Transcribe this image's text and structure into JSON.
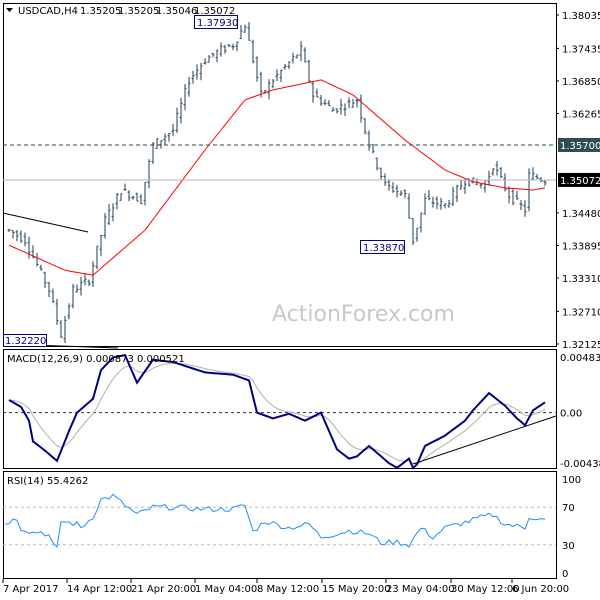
{
  "header": {
    "symbol": "USDCAD,H4",
    "open": "1.35205",
    "high": "1.35205",
    "low": "1.35046",
    "close": "1.35072"
  },
  "watermark": "ActionForex.com",
  "colors": {
    "bars": "#1e3f5a",
    "ma": "#ff0000",
    "macd": "#000080",
    "signal": "#b0b0b0",
    "rsi": "#1e90ff",
    "current_price_bg": "#000000",
    "level_bg": "#2f4f4f"
  },
  "chart_data": [
    {
      "type": "ohlc",
      "title": "USDCAD,H4",
      "x_unit": "bar",
      "ylim": [
        1.32125,
        1.38035
      ],
      "y_ticks": [
        "1.38035",
        "1.37435",
        "1.36850",
        "1.36265",
        "1.35700",
        "1.35072",
        "1.34480",
        "1.33895",
        "1.33310",
        "1.32710",
        "1.32125"
      ],
      "x_ticks": [
        "7 Apr 2017",
        "14 Apr 12:00",
        "21 Apr 20:00",
        "1 May 04:00",
        "8 May 12:00",
        "15 May 20:00",
        "23 May 04:00",
        "30 May 12:00",
        "6 Jun 20:00"
      ],
      "price_path": [
        [
          1,
          1.3417
        ],
        [
          5,
          1.3399
        ],
        [
          11,
          1.331
        ],
        [
          14,
          1.3229
        ],
        [
          17,
          1.331
        ],
        [
          21,
          1.3328
        ],
        [
          25,
          1.3435
        ],
        [
          29,
          1.3489
        ],
        [
          34,
          1.3471
        ],
        [
          37,
          1.357
        ],
        [
          42,
          1.3597
        ],
        [
          46,
          1.3687
        ],
        [
          50,
          1.3723
        ],
        [
          54,
          1.3741
        ],
        [
          57,
          1.375
        ],
        [
          60,
          1.3786
        ],
        [
          64,
          1.366
        ],
        [
          67,
          1.3687
        ],
        [
          74,
          1.3741
        ],
        [
          77,
          1.366
        ],
        [
          82,
          1.3633
        ],
        [
          88,
          1.3651
        ],
        [
          91,
          1.357
        ],
        [
          95,
          1.3498
        ],
        [
          100,
          1.348
        ],
        [
          102,
          1.3399
        ],
        [
          105,
          1.3471
        ],
        [
          110,
          1.3462
        ],
        [
          115,
          1.3507
        ],
        [
          120,
          1.3498
        ],
        [
          122,
          1.3534
        ],
        [
          126,
          1.348
        ],
        [
          130,
          1.3453
        ],
        [
          131,
          1.3516
        ],
        [
          135,
          1.3507
        ]
      ],
      "moving_average": [
        [
          1,
          1.339
        ],
        [
          15,
          1.3345
        ],
        [
          22,
          1.3336
        ],
        [
          35,
          1.3417
        ],
        [
          50,
          1.3561
        ],
        [
          60,
          1.3651
        ],
        [
          67,
          1.3669
        ],
        [
          79,
          1.3687
        ],
        [
          87,
          1.366
        ],
        [
          100,
          1.3579
        ],
        [
          110,
          1.3525
        ],
        [
          117,
          1.3504
        ],
        [
          125,
          1.3493
        ],
        [
          132,
          1.3489
        ],
        [
          135,
          1.3493
        ]
      ],
      "labels": [
        {
          "text": "1.37930"
        },
        {
          "text": "1.33870"
        },
        {
          "text": "1.32220"
        }
      ],
      "levels": [
        {
          "value": "1.35700",
          "style": "dashed"
        },
        {
          "value": "1.35072",
          "style": "current"
        }
      ]
    },
    {
      "type": "line",
      "title": "MACD(12,26,9) 0.000873 0.000521",
      "ylim": [
        -0.004381,
        0.004839
      ],
      "y_ticks": [
        "0.004839",
        "0.00",
        "-0.004381"
      ],
      "macd": [
        [
          1,
          0.0011
        ],
        [
          4,
          0.0005
        ],
        [
          6,
          -0.0007
        ],
        [
          7,
          -0.0025
        ],
        [
          10,
          -0.0033
        ],
        [
          13,
          -0.0042
        ],
        [
          16,
          -0.0016
        ],
        [
          18,
          0.0
        ],
        [
          22,
          0.0012
        ],
        [
          24,
          0.0037
        ],
        [
          27,
          0.0048
        ],
        [
          30,
          0.005
        ],
        [
          33,
          0.0026
        ],
        [
          37,
          0.0046
        ],
        [
          42,
          0.0044
        ],
        [
          50,
          0.0035
        ],
        [
          57,
          0.0033
        ],
        [
          61,
          0.0028
        ],
        [
          63,
          0.0
        ],
        [
          67,
          -0.0005
        ],
        [
          71,
          -0.0001
        ],
        [
          75,
          -0.0007
        ],
        [
          79,
          0.0
        ],
        [
          83,
          -0.0032
        ],
        [
          86,
          -0.004
        ],
        [
          88,
          -0.0038
        ],
        [
          91,
          -0.0029
        ],
        [
          93,
          -0.0035
        ],
        [
          96,
          -0.0044
        ],
        [
          98,
          -0.0048
        ],
        [
          101,
          -0.004
        ],
        [
          102,
          -0.0053
        ],
        [
          105,
          -0.0029
        ],
        [
          110,
          -0.002
        ],
        [
          115,
          -0.0007
        ],
        [
          117,
          0.0002
        ],
        [
          121,
          0.0017
        ],
        [
          125,
          0.0006
        ],
        [
          128,
          -0.0005
        ],
        [
          130,
          -0.0011
        ],
        [
          132,
          0.0002
        ],
        [
          135,
          0.0009
        ]
      ]
    },
    {
      "type": "line",
      "title": "RSI(14) 55.4262",
      "ylim": [
        0,
        100
      ],
      "y_ticks": [
        "100",
        "70",
        "30",
        "0"
      ],
      "levels": [
        70,
        30
      ],
      "rsi": [
        [
          0,
          53
        ],
        [
          3,
          58
        ],
        [
          4,
          48
        ],
        [
          7,
          43
        ],
        [
          9,
          44
        ],
        [
          11,
          40
        ],
        [
          12,
          30
        ],
        [
          13,
          25
        ],
        [
          14,
          55
        ],
        [
          18,
          52
        ],
        [
          19,
          48
        ],
        [
          22,
          60
        ],
        [
          24,
          78
        ],
        [
          27,
          82
        ],
        [
          30,
          72
        ],
        [
          33,
          62
        ],
        [
          37,
          70
        ],
        [
          42,
          70
        ],
        [
          49,
          68
        ],
        [
          57,
          68
        ],
        [
          60,
          72
        ],
        [
          62,
          44
        ],
        [
          65,
          55
        ],
        [
          71,
          48
        ],
        [
          76,
          52
        ],
        [
          79,
          38
        ],
        [
          86,
          45
        ],
        [
          91,
          42
        ],
        [
          94,
          32
        ],
        [
          98,
          33
        ],
        [
          101,
          30
        ],
        [
          104,
          48
        ],
        [
          107,
          38
        ],
        [
          110,
          48
        ],
        [
          116,
          55
        ],
        [
          118,
          58
        ],
        [
          122,
          62
        ],
        [
          125,
          52
        ],
        [
          130,
          48
        ],
        [
          131,
          60
        ],
        [
          135,
          56
        ]
      ]
    }
  ]
}
